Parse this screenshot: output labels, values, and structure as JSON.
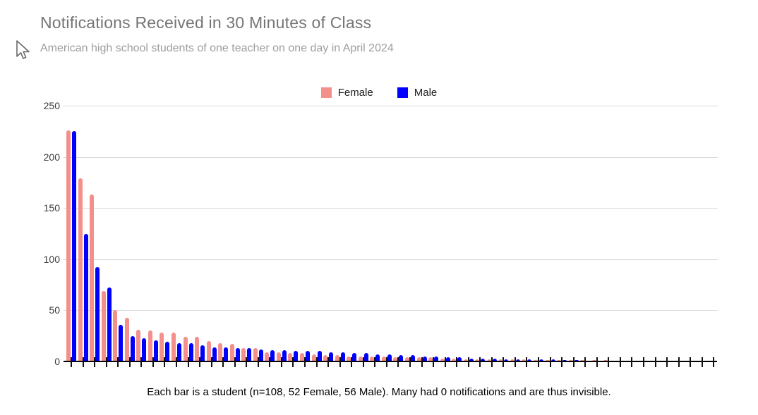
{
  "page": {
    "title": "Notifications Received in 30 Minutes of Class",
    "subtitle": "American high school students of one teacher on one day in April 2024",
    "caption": "Each bar is a student (n=108, 52 Female, 56 Male). Many had 0 notifications and are thus invisible."
  },
  "legend": {
    "entries": [
      {
        "label": "Female",
        "color": "#F4908C"
      },
      {
        "label": "Male",
        "color": "#0000FF"
      }
    ]
  },
  "chart_data": {
    "type": "bar",
    "title": "Notifications Received in 30 Minutes of Class",
    "subtitle": "American high school students of one teacher on one day in April 2024",
    "caption": "Each bar is a student (n=108, 52 Female, 56 Male). Many had 0 notifications and are thus invisible.",
    "xlabel": "",
    "ylabel": "",
    "ylim": [
      0,
      250
    ],
    "y_tick_interval": 50,
    "y_tick_labels": [
      "0",
      "50",
      "100",
      "150",
      "200",
      "250"
    ],
    "grid": true,
    "legend_position": "top-center",
    "groups": 56,
    "note": "Bars are individual students sorted descending within each series; zero-value bars are invisible.",
    "series": [
      {
        "name": "Female",
        "color": "#F4908C",
        "values": [
          226,
          179,
          163,
          69,
          50,
          43,
          31,
          30,
          28,
          28,
          24,
          24,
          20,
          18,
          17,
          13,
          13,
          9,
          9,
          8,
          8,
          7,
          6,
          6,
          5,
          5,
          5,
          5,
          4,
          4,
          4,
          4,
          3,
          3,
          2,
          2,
          2,
          2,
          2,
          2,
          1,
          1,
          1,
          1,
          1,
          1,
          1,
          0,
          0,
          0,
          0,
          0
        ]
      },
      {
        "name": "Male",
        "color": "#0000FF",
        "values": [
          225,
          125,
          92,
          72,
          36,
          25,
          23,
          21,
          19,
          18,
          18,
          16,
          14,
          14,
          13,
          13,
          12,
          11,
          11,
          10,
          10,
          10,
          9,
          9,
          8,
          8,
          7,
          7,
          6,
          6,
          5,
          5,
          4,
          4,
          3,
          3,
          3,
          2,
          2,
          2,
          2,
          2,
          1,
          1,
          0,
          0,
          0,
          0,
          0,
          0,
          0,
          0,
          0,
          0,
          0,
          0
        ]
      }
    ]
  }
}
